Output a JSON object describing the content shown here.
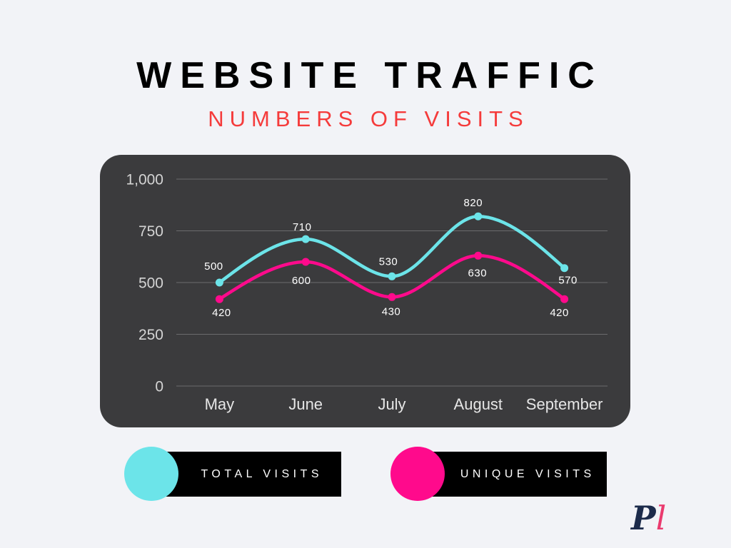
{
  "colors": {
    "background": "#f2f3f7",
    "title": "#000000",
    "subtitle": "#f53b3b",
    "panel": "#3b3b3d",
    "legend_box": "#000000",
    "legend_text": "#ffffff",
    "logo_primary": "#1c2b4b",
    "logo_accent": "#ea3a6e"
  },
  "chart_data": {
    "type": "line",
    "title": "WEBSITE TRAFFIC",
    "subtitle": "NUMBERS OF VISITS",
    "categories": [
      "May",
      "June",
      "July",
      "August",
      "September"
    ],
    "ylim": [
      0,
      1000
    ],
    "yticks": [
      0,
      250,
      500,
      750,
      1000
    ],
    "ytick_labels": [
      "0",
      "250",
      "500",
      "750",
      "1,000"
    ],
    "grid": true,
    "legend_position": "bottom",
    "series": [
      {
        "name": "TOTAL VISITS",
        "color": "#6ce4e9",
        "values": [
          500,
          710,
          530,
          820,
          570
        ]
      },
      {
        "name": "UNIQUE VISITS",
        "color": "#ff0a8c",
        "values": [
          420,
          600,
          430,
          630,
          420
        ]
      }
    ]
  },
  "logo": {
    "letters": [
      "P",
      "l"
    ]
  }
}
